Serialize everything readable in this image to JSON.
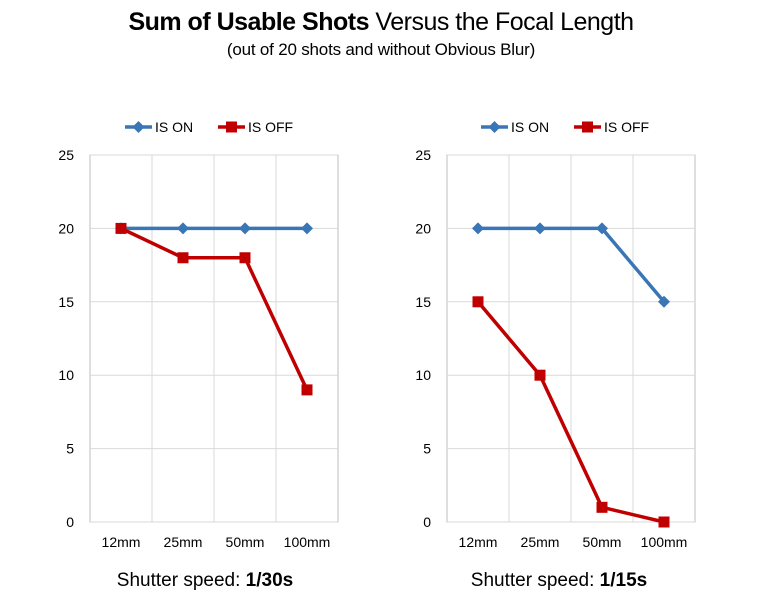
{
  "header": {
    "title_bold": "Sum of Usable Shots",
    "title_rest": " Versus the Focal Length",
    "subtitle": "(out of 20 shots and without Obvious Blur)"
  },
  "colors": {
    "is_on": "#3a76b5",
    "is_off": "#c00000",
    "grid": "#d9d9d9",
    "axis": "#bfbfbf"
  },
  "chart_data": [
    {
      "type": "line",
      "categories": [
        "12mm",
        "25mm",
        "50mm",
        "100mm"
      ],
      "series": [
        {
          "name": "IS ON",
          "values": [
            20,
            20,
            20,
            20
          ],
          "color": "#3a76b5",
          "marker": "diamond"
        },
        {
          "name": "IS OFF",
          "values": [
            20,
            18,
            18,
            9
          ],
          "color": "#c00000",
          "marker": "square"
        }
      ],
      "ylim": [
        0,
        25
      ],
      "yticks": [
        0,
        5,
        10,
        15,
        20,
        25
      ],
      "grid": true,
      "legend": "top",
      "caption_prefix": "Shutter speed: ",
      "caption_value": "1/30s"
    },
    {
      "type": "line",
      "categories": [
        "12mm",
        "25mm",
        "50mm",
        "100mm"
      ],
      "series": [
        {
          "name": "IS ON",
          "values": [
            20,
            20,
            20,
            15
          ],
          "color": "#3a76b5",
          "marker": "diamond"
        },
        {
          "name": "IS OFF",
          "values": [
            15,
            10,
            1,
            0
          ],
          "color": "#c00000",
          "marker": "square"
        }
      ],
      "ylim": [
        0,
        25
      ],
      "yticks": [
        0,
        5,
        10,
        15,
        20,
        25
      ],
      "grid": true,
      "legend": "top",
      "caption_prefix": "Shutter speed: ",
      "caption_value": "1/15s"
    }
  ]
}
